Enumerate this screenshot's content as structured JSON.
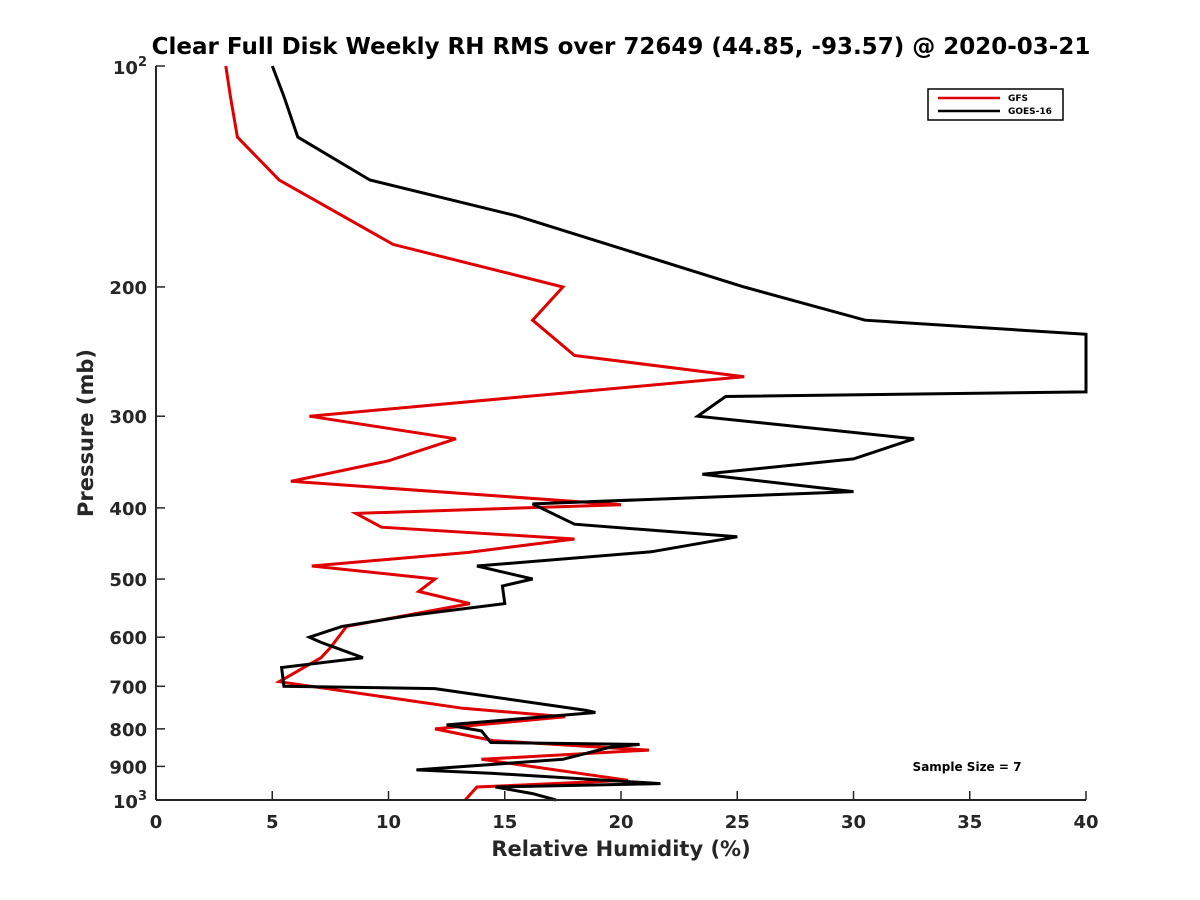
{
  "chart_data": {
    "type": "line",
    "title": "Clear Full Disk Weekly RH RMS over 72649 (44.85, -93.57) @ 2020-03-21",
    "xlabel": "Relative Humidity (%)",
    "ylabel": "Pressure (mb)",
    "xlim": [
      0,
      40
    ],
    "ylim": [
      100,
      1000
    ],
    "yscale": "log",
    "y_reversed": true,
    "x_ticks": [
      "0",
      "5",
      "10",
      "15",
      "20",
      "25",
      "30",
      "35",
      "40"
    ],
    "y_ticks": [
      {
        "value": 100,
        "base": "10",
        "exp": "2"
      },
      {
        "value": 200,
        "label": "200"
      },
      {
        "value": 300,
        "label": "300"
      },
      {
        "value": 400,
        "label": "400"
      },
      {
        "value": 500,
        "label": "500"
      },
      {
        "value": 600,
        "label": "600"
      },
      {
        "value": 700,
        "label": "700"
      },
      {
        "value": 800,
        "label": "800"
      },
      {
        "value": 900,
        "label": "900"
      },
      {
        "value": 1000,
        "base": "10",
        "exp": "3"
      }
    ],
    "legend_position": "top-right",
    "grid": false,
    "series": [
      {
        "name": "GFS",
        "color": "#e00000",
        "x": [
          3.0,
          3.2,
          3.5,
          5.3,
          10.2,
          17.5,
          16.2,
          18.0,
          25.3,
          6.6,
          12.9,
          10.0,
          5.8,
          20.0,
          8.6,
          9.7,
          18.0,
          13.4,
          6.7,
          12.0,
          11.3,
          13.5,
          8.2,
          7.5,
          7.1,
          5.3,
          13.2,
          17.6,
          12.0,
          14.5,
          21.2,
          14.0,
          20.3,
          13.8,
          13.3
        ],
        "y": [
          100,
          110,
          125,
          143,
          175,
          200,
          222,
          248,
          265,
          300,
          322,
          345,
          368,
          396,
          407,
          425,
          441,
          460,
          480,
          500,
          520,
          540,
          580,
          620,
          640,
          690,
          750,
          770,
          800,
          830,
          855,
          880,
          940,
          960,
          1000
        ]
      },
      {
        "name": "GOES-16",
        "color": "#000000",
        "x": [
          5.0,
          5.5,
          6.1,
          9.2,
          15.5,
          25.3,
          30.5,
          40.0,
          40.0,
          24.5,
          23.3,
          32.6,
          30.0,
          23.5,
          30.0,
          16.2,
          18.0,
          25.0,
          21.3,
          13.8,
          16.2,
          14.9,
          15.0,
          11.0,
          8.0,
          6.6,
          7.1,
          8.9,
          5.4,
          5.5,
          12.0,
          18.5,
          18.9,
          12.5,
          14.0,
          14.4,
          20.8,
          19.5,
          17.5,
          11.2,
          14.5,
          21.7,
          14.6,
          16.2,
          17.2
        ],
        "y": [
          100,
          110,
          125,
          143,
          160,
          200,
          222,
          232,
          278,
          282,
          300,
          322,
          343,
          360,
          380,
          395,
          421,
          438,
          459,
          480,
          500,
          511,
          540,
          560,
          580,
          600,
          610,
          640,
          660,
          700,
          705,
          755,
          760,
          790,
          805,
          835,
          840,
          848,
          880,
          910,
          920,
          950,
          960,
          980,
          1000
        ]
      }
    ],
    "annotations": [
      "Sample Size = 7"
    ]
  }
}
